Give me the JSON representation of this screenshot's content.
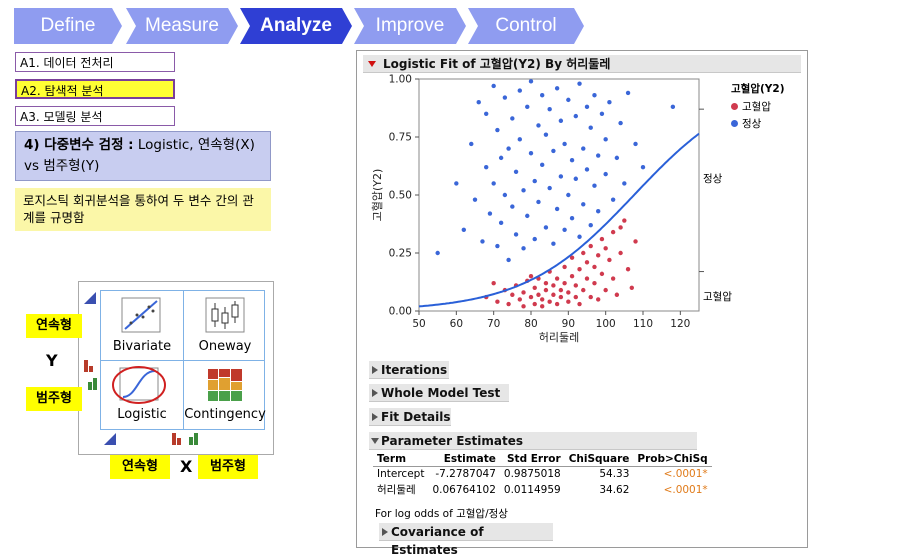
{
  "phases": [
    "Define",
    "Measure",
    "Analyze",
    "Improve",
    "Control"
  ],
  "active_phase": "Analyze",
  "steps": {
    "a1": "A1. 데이터 전처리",
    "a2": "A2. 탐색적 분석",
    "a3": "A3. 모델링 분석"
  },
  "topic": {
    "title_bold": "4) 다중변수 검정 :",
    "title_rest": " Logistic, 연속형(X) vs 범주형(Y)"
  },
  "description": "로지스틱 회귀분석을 통하여 두 변수 간의 관계를 규명함",
  "grid": {
    "cells": [
      "Bivariate",
      "Oneway",
      "Logistic",
      "Contingency"
    ],
    "y_label": "Y",
    "x_label": "X",
    "continuous": "연속형",
    "categorical": "범주형"
  },
  "report": {
    "title": "Logistic Fit of 고혈압(Y2) By 허리둘레",
    "legend_title": "고혈압(Y2)",
    "legend_items": [
      {
        "label": "고혈압",
        "color": "#d03a4e"
      },
      {
        "label": "정상",
        "color": "#3a66d8"
      }
    ],
    "right_labels": {
      "upper": "정상",
      "lower": "고혈압"
    },
    "sections": [
      "Iterations",
      "Whole Model Test",
      "Fit Details",
      "Parameter Estimates",
      "Covariance of Estimates"
    ],
    "table": {
      "headers": [
        "Term",
        "Estimate",
        "Std Error",
        "ChiSquare",
        "Prob>ChiSq"
      ],
      "rows": [
        [
          "Intercept",
          "-7.2787047",
          "0.9875018",
          "54.33",
          "<.0001*"
        ],
        [
          "허리둘레",
          "0.06764102",
          "0.0114959",
          "34.62",
          "<.0001*"
        ]
      ],
      "footnote": "For log odds of 고혈압/정상"
    }
  },
  "chart_data": {
    "type": "scatter",
    "title": "Logistic Fit of 고혈압(Y2) By 허리둘레",
    "xlabel": "허리둘레",
    "ylabel": "고혈압(Y2)",
    "xlim": [
      50,
      125
    ],
    "ylim": [
      0,
      1
    ],
    "x_ticks": [
      "50",
      "60",
      "70",
      "80",
      "90",
      "100",
      "110",
      "120"
    ],
    "y_ticks": [
      "0.00",
      "0.25",
      "0.50",
      "0.75",
      "1.00"
    ],
    "logistic_curve": {
      "intercept": -7.2787047,
      "slope": 0.06764102,
      "color": "#2a60d8"
    },
    "series": [
      {
        "name": "고혈압",
        "color": "#d03a4e",
        "points": [
          [
            68,
            0.06
          ],
          [
            70,
            0.12
          ],
          [
            71,
            0.04
          ],
          [
            73,
            0.09
          ],
          [
            74,
            0.03
          ],
          [
            75,
            0.07
          ],
          [
            76,
            0.11
          ],
          [
            77,
            0.05
          ],
          [
            78,
            0.02
          ],
          [
            78,
            0.08
          ],
          [
            79,
            0.13
          ],
          [
            80,
            0.06
          ],
          [
            80,
            0.15
          ],
          [
            81,
            0.03
          ],
          [
            81,
            0.1
          ],
          [
            82,
            0.07
          ],
          [
            82,
            0.14
          ],
          [
            83,
            0.02
          ],
          [
            83,
            0.05
          ],
          [
            84,
            0.09
          ],
          [
            84,
            0.12
          ],
          [
            85,
            0.04
          ],
          [
            85,
            0.17
          ],
          [
            86,
            0.07
          ],
          [
            86,
            0.11
          ],
          [
            87,
            0.03
          ],
          [
            87,
            0.14
          ],
          [
            88,
            0.06
          ],
          [
            88,
            0.09
          ],
          [
            89,
            0.12
          ],
          [
            89,
            0.19
          ],
          [
            90,
            0.04
          ],
          [
            90,
            0.08
          ],
          [
            91,
            0.15
          ],
          [
            91,
            0.23
          ],
          [
            92,
            0.06
          ],
          [
            92,
            0.11
          ],
          [
            93,
            0.18
          ],
          [
            93,
            0.03
          ],
          [
            94,
            0.09
          ],
          [
            94,
            0.25
          ],
          [
            95,
            0.14
          ],
          [
            95,
            0.21
          ],
          [
            96,
            0.06
          ],
          [
            96,
            0.28
          ],
          [
            97,
            0.12
          ],
          [
            97,
            0.19
          ],
          [
            98,
            0.05
          ],
          [
            98,
            0.24
          ],
          [
            99,
            0.31
          ],
          [
            99,
            0.16
          ],
          [
            100,
            0.09
          ],
          [
            100,
            0.27
          ],
          [
            101,
            0.22
          ],
          [
            102,
            0.34
          ],
          [
            102,
            0.14
          ],
          [
            103,
            0.07
          ],
          [
            104,
            0.36
          ],
          [
            104,
            0.25
          ],
          [
            105,
            0.39
          ],
          [
            106,
            0.18
          ],
          [
            107,
            0.1
          ],
          [
            108,
            0.3
          ]
        ]
      },
      {
        "name": "정상",
        "color": "#3a66d8",
        "points": [
          [
            55,
            0.25
          ],
          [
            60,
            0.55
          ],
          [
            62,
            0.35
          ],
          [
            64,
            0.72
          ],
          [
            65,
            0.48
          ],
          [
            66,
            0.9
          ],
          [
            67,
            0.3
          ],
          [
            68,
            0.62
          ],
          [
            68,
            0.85
          ],
          [
            69,
            0.42
          ],
          [
            70,
            0.97
          ],
          [
            70,
            0.55
          ],
          [
            71,
            0.28
          ],
          [
            71,
            0.78
          ],
          [
            72,
            0.66
          ],
          [
            72,
            0.38
          ],
          [
            73,
            0.92
          ],
          [
            73,
            0.5
          ],
          [
            74,
            0.22
          ],
          [
            74,
            0.7
          ],
          [
            75,
            0.83
          ],
          [
            75,
            0.45
          ],
          [
            76,
            0.6
          ],
          [
            76,
            0.33
          ],
          [
            77,
            0.95
          ],
          [
            77,
            0.74
          ],
          [
            78,
            0.52
          ],
          [
            78,
            0.27
          ],
          [
            79,
            0.88
          ],
          [
            79,
            0.41
          ],
          [
            80,
            0.68
          ],
          [
            80,
            0.99
          ],
          [
            81,
            0.56
          ],
          [
            81,
            0.31
          ],
          [
            82,
            0.8
          ],
          [
            82,
            0.47
          ],
          [
            83,
            0.93
          ],
          [
            83,
            0.63
          ],
          [
            84,
            0.36
          ],
          [
            84,
            0.76
          ],
          [
            85,
            0.53
          ],
          [
            85,
            0.87
          ],
          [
            86,
            0.29
          ],
          [
            86,
            0.69
          ],
          [
            87,
            0.44
          ],
          [
            87,
            0.96
          ],
          [
            88,
            0.58
          ],
          [
            88,
            0.82
          ],
          [
            89,
            0.35
          ],
          [
            89,
            0.72
          ],
          [
            90,
            0.5
          ],
          [
            90,
            0.91
          ],
          [
            91,
            0.65
          ],
          [
            91,
            0.4
          ],
          [
            92,
            0.84
          ],
          [
            92,
            0.57
          ],
          [
            93,
            0.32
          ],
          [
            93,
            0.98
          ],
          [
            94,
            0.7
          ],
          [
            94,
            0.46
          ],
          [
            95,
            0.88
          ],
          [
            95,
            0.61
          ],
          [
            96,
            0.37
          ],
          [
            96,
            0.79
          ],
          [
            97,
            0.54
          ],
          [
            97,
            0.93
          ],
          [
            98,
            0.67
          ],
          [
            98,
            0.43
          ],
          [
            99,
            0.85
          ],
          [
            100,
            0.59
          ],
          [
            100,
            0.74
          ],
          [
            101,
            0.9
          ],
          [
            102,
            0.48
          ],
          [
            103,
            0.66
          ],
          [
            104,
            0.81
          ],
          [
            105,
            0.55
          ],
          [
            106,
            0.94
          ],
          [
            108,
            0.72
          ],
          [
            110,
            0.62
          ],
          [
            118,
            0.88
          ]
        ]
      }
    ]
  }
}
